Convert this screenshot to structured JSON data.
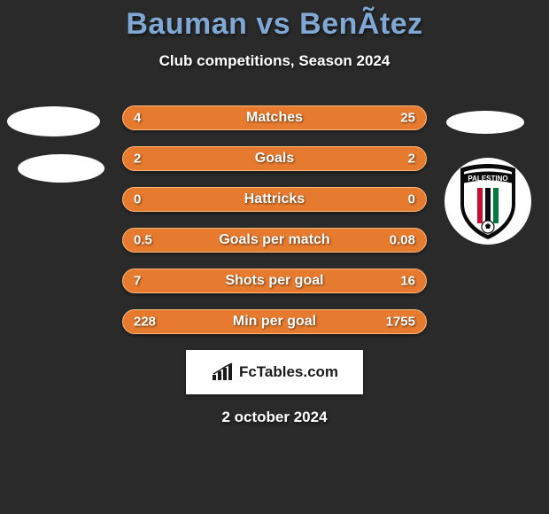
{
  "title": "Bauman vs BenÃ­tez",
  "subtitle": "Club competitions, Season 2024",
  "date": "2 october 2024",
  "brand": "FcTables.com",
  "colors": {
    "accent": "#e67a2e",
    "accent_border": "#ffb97a",
    "title": "#7fa8d4",
    "text": "#ffffff",
    "background": "#2a2a2a",
    "brand_box": "#ffffff"
  },
  "rows": [
    {
      "left": "4",
      "label": "Matches",
      "right": "25"
    },
    {
      "left": "2",
      "label": "Goals",
      "right": "2"
    },
    {
      "left": "0",
      "label": "Hattricks",
      "right": "0"
    },
    {
      "left": "0.5",
      "label": "Goals per match",
      "right": "0.08"
    },
    {
      "left": "7",
      "label": "Shots per goal",
      "right": "16"
    },
    {
      "left": "228",
      "label": "Min per goal",
      "right": "1755"
    }
  ],
  "crest_text": "PALESTINO",
  "row_style": {
    "height": 28,
    "radius": 14,
    "fontsize_label": 16,
    "fontsize_value": 15,
    "gap": 18
  }
}
